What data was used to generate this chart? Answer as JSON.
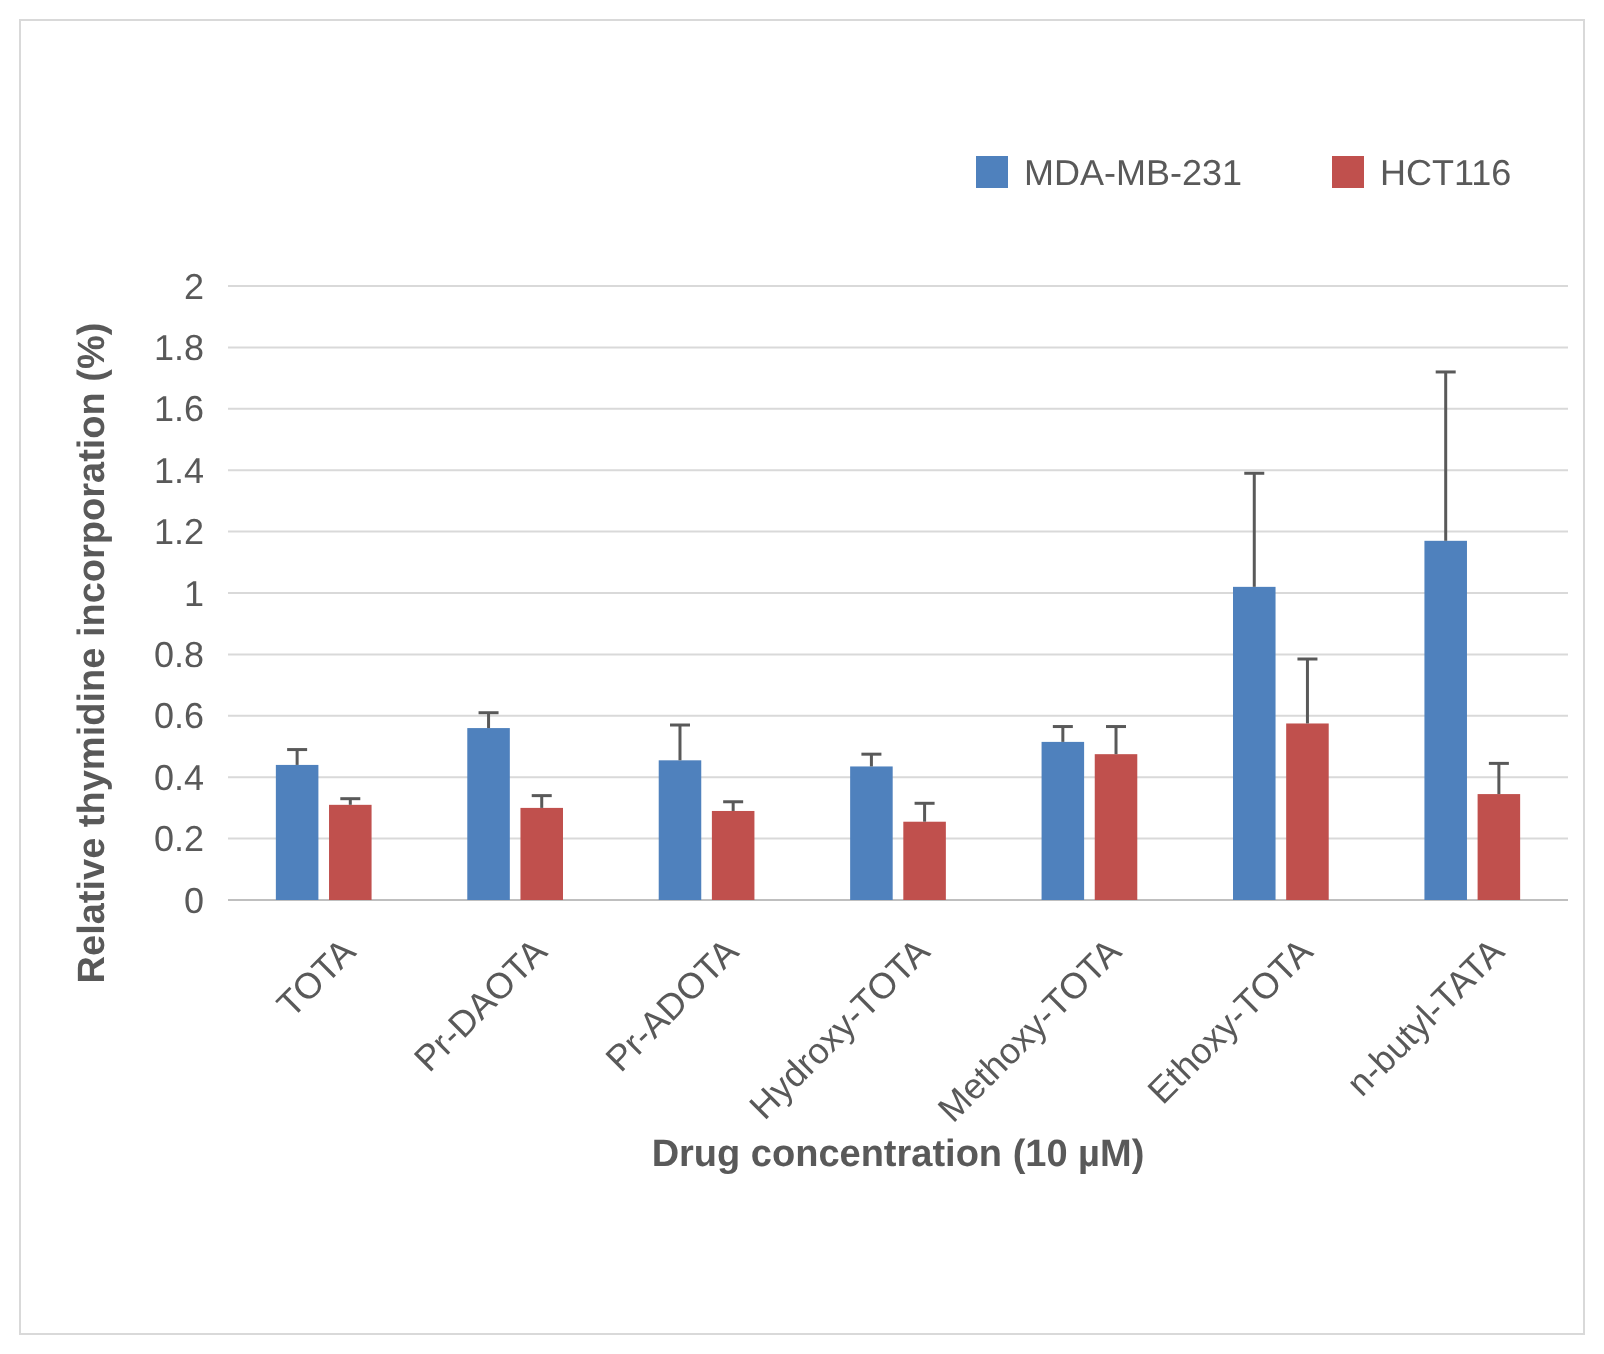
{
  "chart_data": {
    "type": "bar",
    "xlabel": "Drug concentration (10 µM)",
    "ylabel": "Relative thymidine incorporation (%)",
    "categories": [
      "TOTA",
      "Pr-DAOTA",
      "Pr-ADOTA",
      "Hydroxy-TOTA",
      "Methoxy-TOTA",
      "Ethoxy-TOTA",
      "n-butyl-TATA"
    ],
    "series": [
      {
        "name": "MDA-MB-231",
        "color": "#4f81bd",
        "values": [
          0.44,
          0.56,
          0.455,
          0.435,
          0.515,
          1.02,
          1.17
        ],
        "errors": [
          0.05,
          0.05,
          0.115,
          0.04,
          0.05,
          0.37,
          0.55
        ]
      },
      {
        "name": "HCT116",
        "color": "#c0504d",
        "values": [
          0.31,
          0.3,
          0.29,
          0.255,
          0.475,
          0.575,
          0.345
        ],
        "errors": [
          0.02,
          0.04,
          0.03,
          0.06,
          0.09,
          0.21,
          0.1
        ]
      }
    ],
    "ylim": [
      0,
      2
    ],
    "yticks": [
      0,
      0.2,
      0.4,
      0.6,
      0.8,
      1,
      1.2,
      1.4,
      1.6,
      1.8,
      2
    ],
    "grid": "y",
    "legend": "top right"
  }
}
